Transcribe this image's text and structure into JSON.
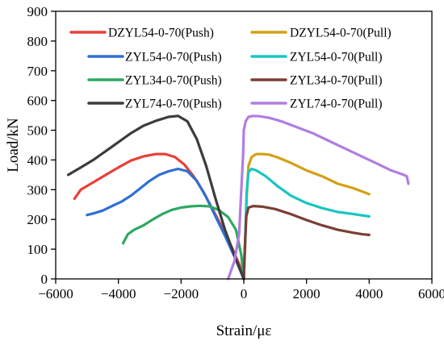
{
  "chart_data": {
    "type": "line",
    "title": "",
    "xlabel": "Strain/με",
    "ylabel": "Load/kN",
    "xlim": [
      -6000,
      6000
    ],
    "ylim": [
      0,
      900
    ],
    "xticks": [
      -6000,
      -4000,
      -2000,
      0,
      2000,
      4000,
      6000
    ],
    "yticks": [
      0,
      100,
      200,
      300,
      400,
      500,
      600,
      700,
      800,
      900
    ],
    "xtick_labels": [
      "−6000",
      "−4000",
      "−2000",
      "0",
      "2000",
      "4000",
      "6000"
    ],
    "ytick_labels": [
      "0",
      "100",
      "200",
      "300",
      "400",
      "500",
      "600",
      "700",
      "800",
      "900"
    ],
    "grid": false,
    "legend": "top, two columns",
    "series": [
      {
        "name": "DZYL54-0-70(Push)",
        "color": "#e8403a",
        "x": [
          -5400,
          -5200,
          -4800,
          -4400,
          -4000,
          -3600,
          -3200,
          -2800,
          -2500,
          -2200,
          -1900,
          -1600,
          -1300,
          -1000,
          -700,
          -400,
          -150,
          0
        ],
        "y": [
          270,
          300,
          325,
          350,
          375,
          398,
          412,
          420,
          420,
          410,
          385,
          345,
          295,
          235,
          175,
          110,
          50,
          0
        ]
      },
      {
        "name": "DZYL54-0-70(Pull)",
        "color": "#d4a017",
        "x": [
          0,
          40,
          80,
          150,
          250,
          400,
          600,
          800,
          1100,
          1500,
          2000,
          2500,
          3000,
          3500,
          4000
        ],
        "y": [
          0,
          100,
          250,
          380,
          410,
          420,
          420,
          418,
          408,
          390,
          365,
          345,
          320,
          305,
          285
        ]
      },
      {
        "name": "ZYL54-0-70(Push)",
        "color": "#2f6fd4",
        "x": [
          -5000,
          -4800,
          -4500,
          -4200,
          -3900,
          -3600,
          -3300,
          -3000,
          -2700,
          -2400,
          -2100,
          -1800,
          -1500,
          -1200,
          -900,
          -600,
          -300,
          0
        ],
        "y": [
          215,
          220,
          230,
          245,
          260,
          280,
          305,
          330,
          350,
          362,
          370,
          362,
          330,
          275,
          210,
          145,
          75,
          0
        ]
      },
      {
        "name": "ZYL54-0-70(Pull)",
        "color": "#18c6c0",
        "x": [
          0,
          40,
          90,
          150,
          250,
          400,
          700,
          1100,
          1500,
          2000,
          2500,
          3000,
          3500,
          4000
        ],
        "y": [
          0,
          120,
          290,
          360,
          370,
          365,
          345,
          310,
          280,
          255,
          238,
          225,
          218,
          210
        ]
      },
      {
        "name": "ZYL34-0-70(Push)",
        "color": "#2ea862",
        "x": [
          -3850,
          -3700,
          -3500,
          -3200,
          -2900,
          -2600,
          -2300,
          -2000,
          -1700,
          -1400,
          -1100,
          -800,
          -500,
          -250,
          -80,
          0
        ],
        "y": [
          120,
          150,
          165,
          180,
          200,
          218,
          232,
          240,
          244,
          246,
          244,
          232,
          208,
          165,
          80,
          0
        ]
      },
      {
        "name": "ZYL34-0-70(Pull)",
        "color": "#7a3f36",
        "x": [
          0,
          30,
          80,
          150,
          300,
          600,
          1000,
          1500,
          2000,
          2500,
          3000,
          3500,
          3800,
          4000
        ],
        "y": [
          0,
          100,
          210,
          240,
          245,
          243,
          235,
          218,
          198,
          180,
          165,
          155,
          150,
          148
        ]
      },
      {
        "name": "ZYL74-0-70(Push)",
        "color": "#3c3c3c",
        "x": [
          -5600,
          -5200,
          -4800,
          -4400,
          -4000,
          -3600,
          -3200,
          -2800,
          -2400,
          -2100,
          -1800,
          -1500,
          -1200,
          -900,
          -600,
          -300,
          0
        ],
        "y": [
          350,
          375,
          400,
          430,
          460,
          490,
          515,
          532,
          545,
          548,
          530,
          470,
          380,
          270,
          165,
          80,
          0
        ]
      },
      {
        "name": "ZYL74-0-70(Pull)",
        "color": "#b07ee0",
        "x": [
          -500,
          -300,
          -150,
          -80,
          -20,
          0,
          60,
          150,
          300,
          500,
          800,
          1200,
          1700,
          2200,
          2700,
          3200,
          3700,
          4200,
          4700,
          5100,
          5200,
          5250
        ],
        "y": [
          0,
          60,
          150,
          300,
          420,
          500,
          530,
          545,
          548,
          547,
          542,
          530,
          510,
          490,
          465,
          440,
          415,
          390,
          365,
          350,
          345,
          320
        ]
      }
    ]
  }
}
